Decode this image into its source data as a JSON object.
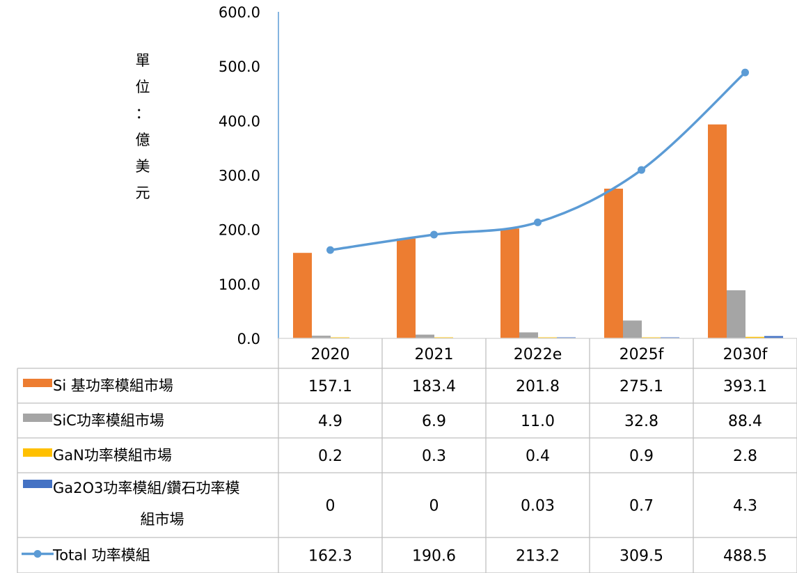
{
  "chart_data": {
    "type": "bar",
    "ylabel": "單位：億美元",
    "ylabel_chars": [
      "單",
      "位",
      "：",
      "億",
      "美",
      "元"
    ],
    "ylim": [
      0,
      600
    ],
    "yticks": [
      "0.0",
      "100.0",
      "200.0",
      "300.0",
      "400.0",
      "500.0",
      "600.0"
    ],
    "ytick_values": [
      0,
      100,
      200,
      300,
      400,
      500,
      600
    ],
    "categories": [
      "2020",
      "2021",
      "2022e",
      "2025f",
      "2030f"
    ],
    "series": [
      {
        "name": "Si 基功率模組市場",
        "kind": "bar",
        "color": "#ED7D31",
        "values": [
          157.1,
          183.4,
          201.8,
          275.1,
          393.1
        ],
        "table": [
          "157.1",
          "183.4",
          "201.8",
          "275.1",
          "393.1"
        ]
      },
      {
        "name": "SiC功率模組市場",
        "kind": "bar",
        "color": "#A5A5A5",
        "values": [
          4.9,
          6.9,
          11.0,
          32.8,
          88.4
        ],
        "table": [
          "4.9",
          "6.9",
          "11.0",
          "32.8",
          "88.4"
        ]
      },
      {
        "name": "GaN功率模組市場",
        "kind": "bar",
        "color": "#FFC000",
        "values": [
          0.2,
          0.3,
          0.4,
          0.9,
          2.8
        ],
        "table": [
          "0.2",
          "0.3",
          "0.4",
          "0.9",
          "2.8"
        ]
      },
      {
        "name_lines": [
          "Ga2O3功率模組/鑽石功率模",
          "組市場"
        ],
        "kind": "bar",
        "color": "#4472C4",
        "values": [
          0,
          0,
          0.03,
          0.7,
          4.3
        ],
        "table": [
          "0",
          "0",
          "0.03",
          "0.7",
          "4.3"
        ]
      },
      {
        "name": "Total 功率模組",
        "kind": "line",
        "color": "#5B9BD5",
        "values": [
          162.3,
          190.6,
          213.2,
          309.5,
          488.5
        ],
        "table": [
          "162.3",
          "190.6",
          "213.2",
          "309.5",
          "488.5"
        ]
      }
    ],
    "grid": false,
    "legend": "data-table"
  }
}
